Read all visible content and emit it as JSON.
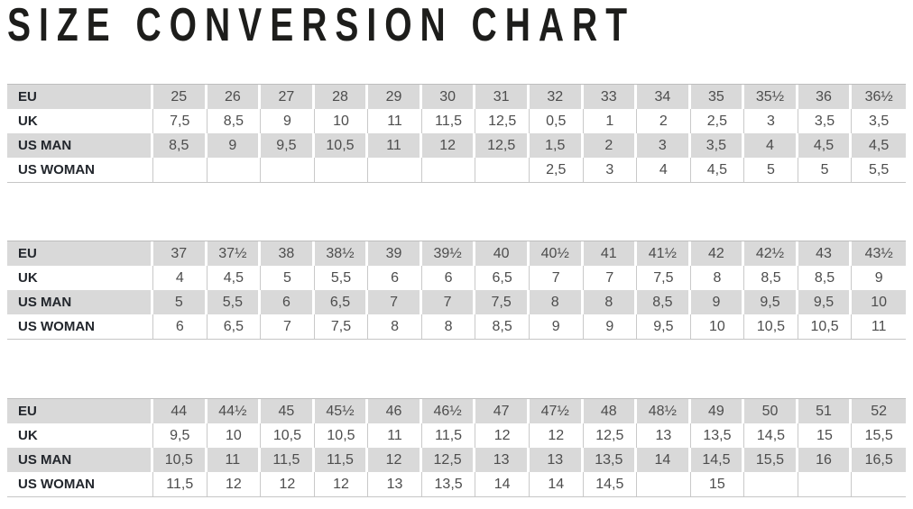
{
  "title": "SIZE CONVERSION CHART",
  "colors": {
    "row_shade": "#d9d9d9",
    "row_white": "#ffffff",
    "table_border": "#bdbdbd",
    "cell_separator": "#c9c9c9",
    "label_text": "#22262c",
    "value_text": "#4d4d4d",
    "title_text": "#1d1d1b"
  },
  "tables": [
    {
      "rows": [
        {
          "label": "EU",
          "values": [
            "25",
            "26",
            "27",
            "28",
            "29",
            "30",
            "31",
            "32",
            "33",
            "34",
            "35",
            "35½",
            "36",
            "36½"
          ]
        },
        {
          "label": "UK",
          "values": [
            "7,5",
            "8,5",
            "9",
            "10",
            "11",
            "11,5",
            "12,5",
            "0,5",
            "1",
            "2",
            "2,5",
            "3",
            "3,5",
            "3,5"
          ]
        },
        {
          "label": "US MAN",
          "values": [
            "8,5",
            "9",
            "9,5",
            "10,5",
            "11",
            "12",
            "12,5",
            "1,5",
            "2",
            "3",
            "3,5",
            "4",
            "4,5",
            "4,5"
          ]
        },
        {
          "label": "US WOMAN",
          "values": [
            "",
            "",
            "",
            "",
            "",
            "",
            "",
            "2,5",
            "3",
            "4",
            "4,5",
            "5",
            "5",
            "5,5"
          ]
        }
      ]
    },
    {
      "rows": [
        {
          "label": "EU",
          "values": [
            "37",
            "37½",
            "38",
            "38½",
            "39",
            "39½",
            "40",
            "40½",
            "41",
            "41½",
            "42",
            "42½",
            "43",
            "43½"
          ]
        },
        {
          "label": "UK",
          "values": [
            "4",
            "4,5",
            "5",
            "5,5",
            "6",
            "6",
            "6,5",
            "7",
            "7",
            "7,5",
            "8",
            "8,5",
            "8,5",
            "9"
          ]
        },
        {
          "label": "US MAN",
          "values": [
            "5",
            "5,5",
            "6",
            "6,5",
            "7",
            "7",
            "7,5",
            "8",
            "8",
            "8,5",
            "9",
            "9,5",
            "9,5",
            "10"
          ]
        },
        {
          "label": "US WOMAN",
          "values": [
            "6",
            "6,5",
            "7",
            "7,5",
            "8",
            "8",
            "8,5",
            "9",
            "9",
            "9,5",
            "10",
            "10,5",
            "10,5",
            "11"
          ]
        }
      ]
    },
    {
      "rows": [
        {
          "label": "EU",
          "values": [
            "44",
            "44½",
            "45",
            "45½",
            "46",
            "46½",
            "47",
            "47½",
            "48",
            "48½",
            "49",
            "50",
            "51",
            "52"
          ]
        },
        {
          "label": "UK",
          "values": [
            "9,5",
            "10",
            "10,5",
            "10,5",
            "11",
            "11,5",
            "12",
            "12",
            "12,5",
            "13",
            "13,5",
            "14,5",
            "15",
            "15,5"
          ]
        },
        {
          "label": "US MAN",
          "values": [
            "10,5",
            "11",
            "11,5",
            "11,5",
            "12",
            "12,5",
            "13",
            "13",
            "13,5",
            "14",
            "14,5",
            "15,5",
            "16",
            "16,5"
          ]
        },
        {
          "label": "US WOMAN",
          "values": [
            "11,5",
            "12",
            "12",
            "12",
            "13",
            "13,5",
            "14",
            "14",
            "14,5",
            "",
            "15",
            "",
            "",
            ""
          ]
        }
      ]
    }
  ]
}
